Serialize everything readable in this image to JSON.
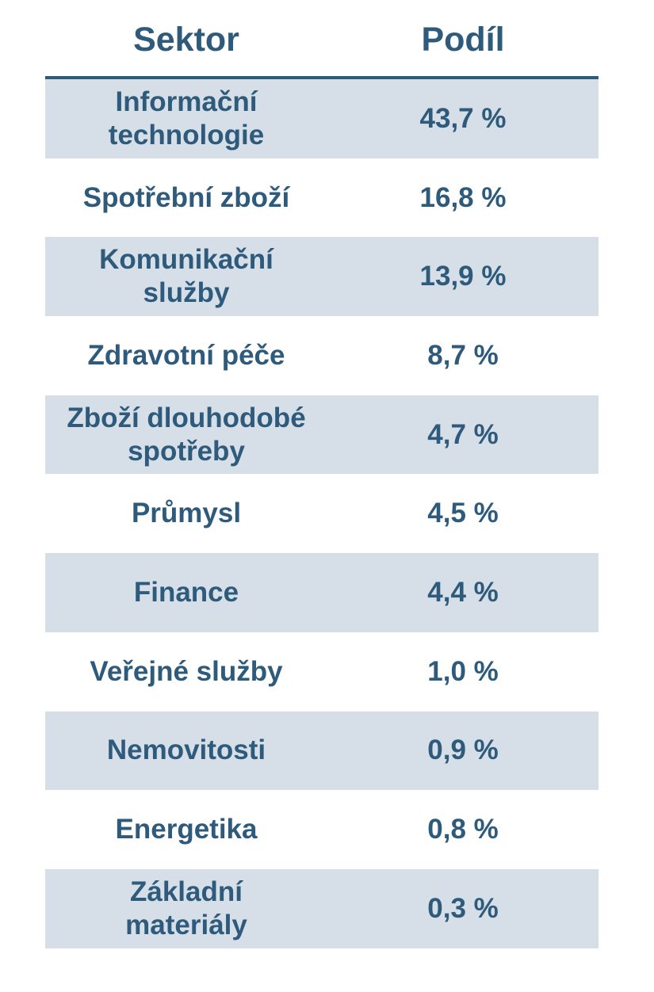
{
  "chart_data": {
    "type": "table",
    "columns": [
      "Sektor",
      "Podíl"
    ],
    "rows": [
      {
        "sector": "Informační technologie",
        "share": "43,7 %",
        "value": 43.7
      },
      {
        "sector": "Spotřební zboží",
        "share": "16,8 %",
        "value": 16.8
      },
      {
        "sector": "Komunikační služby",
        "share": "13,9 %",
        "value": 13.9
      },
      {
        "sector": "Zdravotní péče",
        "share": "8,7 %",
        "value": 8.7
      },
      {
        "sector": "Zboží dlouhodobé spotřeby",
        "share": "4,7 %",
        "value": 4.7
      },
      {
        "sector": "Průmysl",
        "share": "4,5 %",
        "value": 4.5
      },
      {
        "sector": "Finance",
        "share": "4,4 %",
        "value": 4.4
      },
      {
        "sector": "Veřejné služby",
        "share": "1,0 %",
        "value": 1.0
      },
      {
        "sector": "Nemovitosti",
        "share": "0,9 %",
        "value": 0.9
      },
      {
        "sector": "Energetika",
        "share": "0,8 %",
        "value": 0.8
      },
      {
        "sector": "Základní materiály",
        "share": "0,3 %",
        "value": 0.3
      }
    ]
  },
  "colors": {
    "text": "#2e5a7c",
    "header_rule": "#2e5a7c",
    "stripe": "#d6dfe7",
    "background": "#ffffff"
  }
}
